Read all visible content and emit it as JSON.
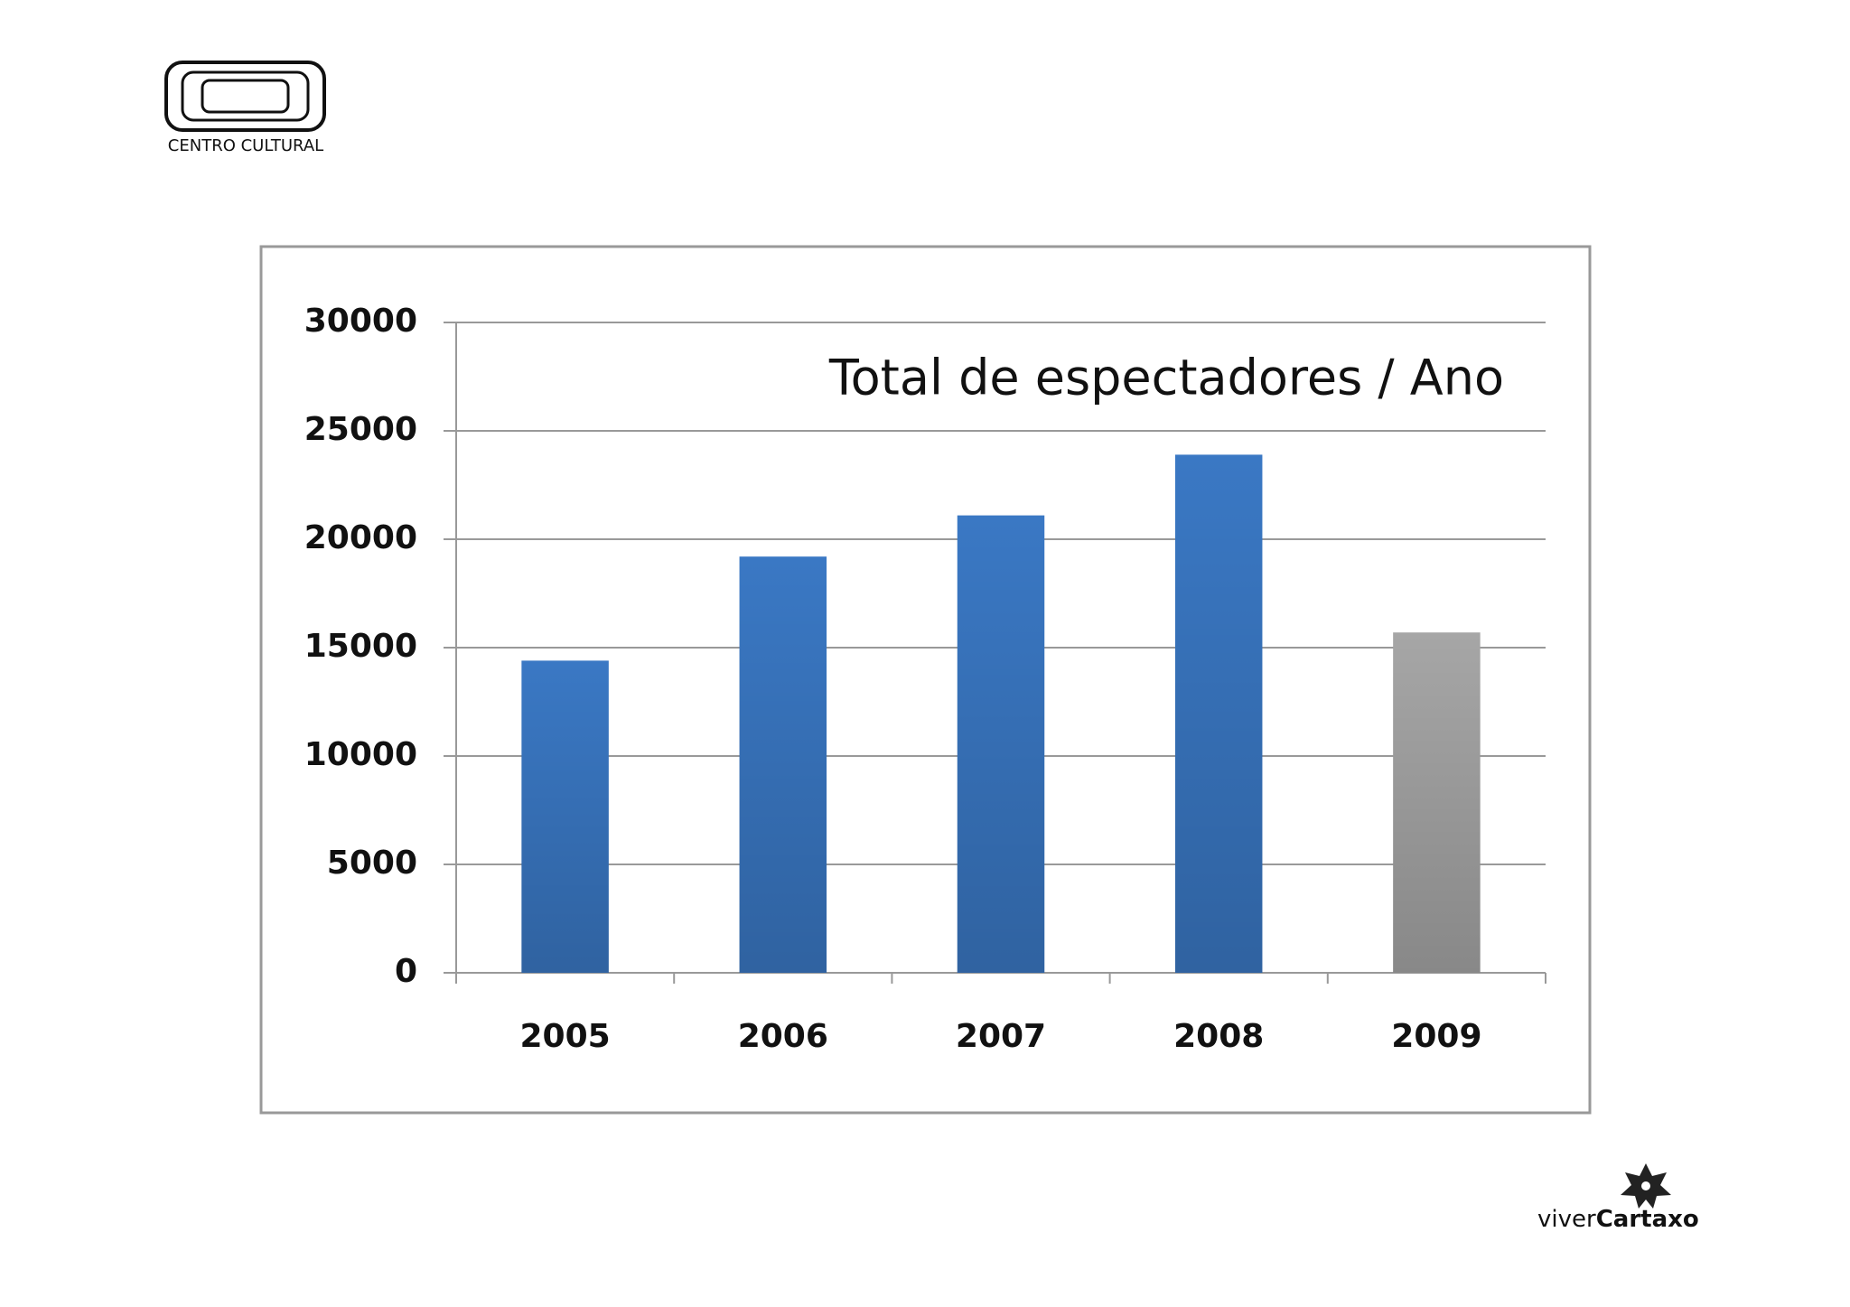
{
  "logo_top": {
    "text": "CENTRO CULTURAL"
  },
  "logo_bottom": {
    "text_1": "viver",
    "text_2": "Cartaxo"
  },
  "chart_data": {
    "type": "bar",
    "title": "Total de espectadores / Ano",
    "categories": [
      "2005",
      "2006",
      "2007",
      "2008",
      "2009"
    ],
    "values": [
      14400,
      19200,
      21100,
      23900,
      15700
    ],
    "colors": [
      "#3a78c4",
      "#3a78c4",
      "#3a78c4",
      "#3a78c4",
      "#a6a6a6"
    ],
    "ylim": [
      0,
      30000
    ],
    "yticks": [
      0,
      5000,
      10000,
      15000,
      20000,
      25000,
      30000
    ],
    "grid": true
  }
}
